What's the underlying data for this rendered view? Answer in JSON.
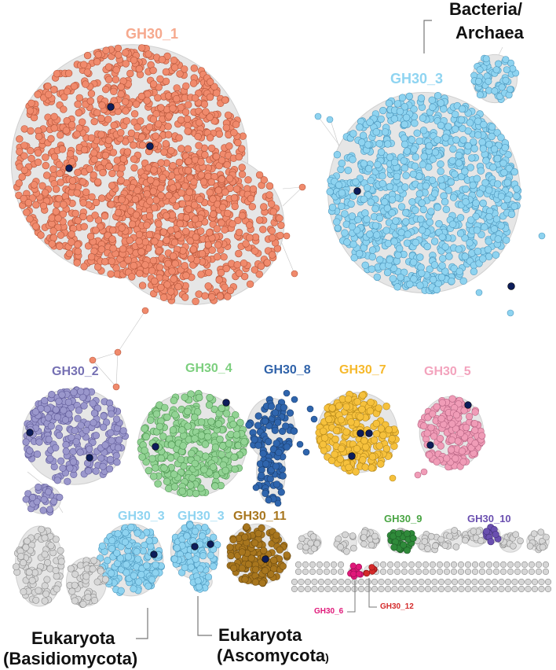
{
  "clusters": [
    {
      "id": "gh30-1",
      "label": "GH30_1",
      "color": "#f08a6c",
      "stroke": "#b5553a"
    },
    {
      "id": "gh30-3-bact",
      "label": "GH30_3",
      "color": "#8ed3f0",
      "stroke": "#4c97bd"
    },
    {
      "id": "gh30-2",
      "label": "GH30_2",
      "color": "#9a97cc",
      "stroke": "#5f5a98"
    },
    {
      "id": "gh30-4",
      "label": "GH30_4",
      "color": "#92d394",
      "stroke": "#4f9652"
    },
    {
      "id": "gh30-8",
      "label": "GH30_8",
      "color": "#2f65ad",
      "stroke": "#1a3f70"
    },
    {
      "id": "gh30-7",
      "label": "GH30_7",
      "color": "#f6c13c",
      "stroke": "#b4871a"
    },
    {
      "id": "gh30-5",
      "label": "GH30_5",
      "color": "#f09cb7",
      "stroke": "#b66382"
    },
    {
      "id": "gh30-3-basid",
      "label": "GH30_3",
      "color": "#8ed3f0",
      "stroke": "#4c97bd"
    },
    {
      "id": "gh30-3-asco",
      "label": "GH30_3",
      "color": "#8ed3f0",
      "stroke": "#4c97bd"
    },
    {
      "id": "gh30-11",
      "label": "GH30_11",
      "color": "#a8761e",
      "stroke": "#6e4c10"
    },
    {
      "id": "gh30-9",
      "label": "GH30_9",
      "color": "#2f8a3a",
      "stroke": "#1c5a24"
    },
    {
      "id": "gh30-10",
      "label": "GH30_10",
      "color": "#6a4fb0",
      "stroke": "#43307a"
    },
    {
      "id": "gh30-6",
      "label": "GH30_6",
      "color": "#e0197a",
      "stroke": "#9a0f52"
    },
    {
      "id": "gh30-12",
      "label": "GH30_12",
      "color": "#d42a2a",
      "stroke": "#8c1414"
    }
  ],
  "annotations": {
    "bacteria": "Bacteria/",
    "archaea": "Archaea",
    "eukaryota": "Eukaryota",
    "basidiomycota": "(Basidiomycota)",
    "ascomycota": "(Ascomycota",
    "ascomycota_paren": ")"
  },
  "colors": {
    "unassigned_node": "#d6d6d6",
    "unassigned_stroke": "#8a8a8a",
    "edge": "#c4c4c4",
    "highlight_node": "#0d1d5a"
  }
}
